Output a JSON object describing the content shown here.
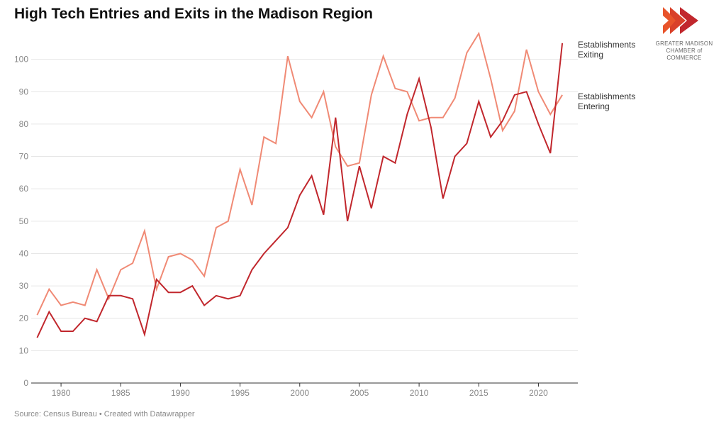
{
  "chart_data": {
    "type": "line",
    "title": "High Tech Entries and Exits in the Madison Region",
    "x": [
      1978,
      1979,
      1980,
      1981,
      1982,
      1983,
      1984,
      1985,
      1986,
      1987,
      1988,
      1989,
      1990,
      1991,
      1992,
      1993,
      1994,
      1995,
      1996,
      1997,
      1998,
      1999,
      2000,
      2001,
      2002,
      2003,
      2004,
      2005,
      2006,
      2007,
      2008,
      2009,
      2010,
      2011,
      2012,
      2013,
      2014,
      2015,
      2016,
      2017,
      2018,
      2019,
      2020,
      2021,
      2022
    ],
    "series": [
      {
        "name": "Establishments Exiting",
        "color": "#c1272d",
        "values": [
          14,
          22,
          16,
          16,
          20,
          19,
          27,
          27,
          26,
          15,
          32,
          28,
          28,
          30,
          24,
          27,
          26,
          27,
          35,
          40,
          44,
          48,
          58,
          64,
          52,
          82,
          50,
          67,
          54,
          70,
          68,
          83,
          94,
          79,
          57,
          70,
          74,
          87,
          76,
          81,
          89,
          90,
          80,
          71,
          105
        ]
      },
      {
        "name": "Establishments Entering",
        "color": "#f08a75",
        "values": [
          21,
          29,
          24,
          25,
          24,
          35,
          26,
          35,
          37,
          47,
          29,
          39,
          40,
          38,
          33,
          48,
          50,
          66,
          55,
          76,
          74,
          101,
          87,
          82,
          90,
          73,
          67,
          68,
          89,
          101,
          91,
          90,
          81,
          82,
          82,
          88,
          102,
          108,
          94,
          78,
          84,
          103,
          90,
          83,
          89
        ]
      }
    ],
    "xticks": [
      1980,
      1985,
      1990,
      1995,
      2000,
      2005,
      2010,
      2015,
      2020
    ],
    "yticks": [
      0,
      10,
      20,
      30,
      40,
      50,
      60,
      70,
      80,
      90,
      100
    ],
    "xlim": [
      1977.5,
      2023.3
    ],
    "ylim": [
      0,
      110
    ],
    "grid": true,
    "labels": {
      "exiting": [
        "Establishments",
        "Exiting"
      ],
      "entering": [
        "Establishments",
        "Entering"
      ]
    }
  },
  "footer": {
    "source": "Source: Census Bureau • Created with Datawrapper"
  },
  "logo": {
    "line1": "GREATER MADISON",
    "line2": "CHAMBER of COMMERCE",
    "colors": [
      "#e8542b",
      "#c1272d"
    ]
  }
}
